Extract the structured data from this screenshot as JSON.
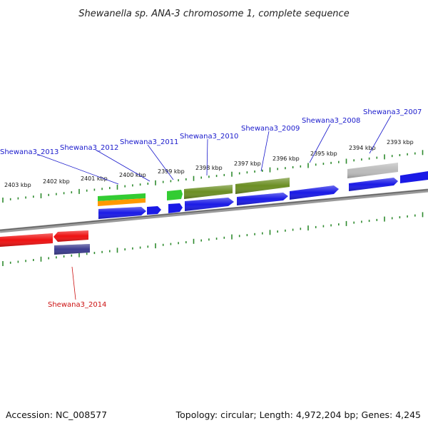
{
  "title": "Shewanella sp. ANA-3 chromosome 1, complete sequence",
  "footer": {
    "accession": "Accession: NC_008577",
    "summary": "Topology: circular; Length: 4,972,204 bp; Genes: 4,245"
  },
  "colors": {
    "label_plus": "#1a1acc",
    "label_minus": "#cc1111",
    "tick": "#2e8b2e",
    "backbone": "#7a7a7a",
    "cds_blue": "#1a1ae6",
    "cds_olive": "#6b8e23",
    "cds_green": "#33cc33",
    "cds_orange": "#ff9900",
    "cds_gray": "#bbbbbb",
    "cds_red": "#ee1111",
    "cds_navy": "#3b3b8f"
  },
  "scale_labels": [
    "2403 kbp",
    "2402 kbp",
    "2401 kbp",
    "2400 kbp",
    "2399 kbp",
    "2398 kbp",
    "2397 kbp",
    "2396 kbp",
    "2395 kbp",
    "2394 kbp",
    "2393 kbp"
  ],
  "gene_labels": [
    {
      "id": "Shewana3_2013",
      "strand": "plus"
    },
    {
      "id": "Shewana3_2012",
      "strand": "plus"
    },
    {
      "id": "Shewana3_2011",
      "strand": "plus"
    },
    {
      "id": "Shewana3_2010",
      "strand": "plus"
    },
    {
      "id": "Shewana3_2009",
      "strand": "plus"
    },
    {
      "id": "Shewana3_2008",
      "strand": "plus"
    },
    {
      "id": "Shewana3_2007",
      "strand": "plus"
    },
    {
      "id": "Shewana3_2014",
      "strand": "minus"
    }
  ]
}
